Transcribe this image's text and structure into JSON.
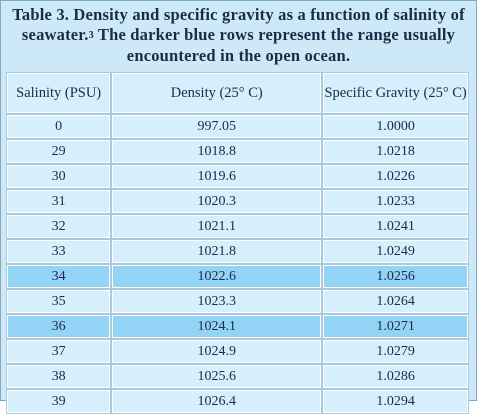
{
  "title": {
    "text": "Table 3.  Density and specific gravity as a function of salinity of seawater.",
    "footnote_ref": "3",
    "rest": " The darker blue rows represent the range usually encountered in the open ocean."
  },
  "table": {
    "header": [
      "Salinity (PSU)",
      "Density (25° C)",
      "Specific Gravity (25° C)"
    ],
    "rows": [
      {
        "cells": [
          "0",
          "997.05",
          "1.0000"
        ],
        "color": "#d6effc"
      },
      {
        "cells": [
          "29",
          "1018.8",
          "1.0218"
        ],
        "color": "#d6effc"
      },
      {
        "cells": [
          "30",
          "1019.6",
          "1.0226"
        ],
        "color": "#d6effc"
      },
      {
        "cells": [
          "31",
          "1020.3",
          "1.0233"
        ],
        "color": "#d6effc"
      },
      {
        "cells": [
          "32",
          "1021.1",
          "1.0241"
        ],
        "color": "#d6effc"
      },
      {
        "cells": [
          "33",
          "1021.8",
          "1.0249"
        ],
        "color": "#d6effc"
      },
      {
        "cells": [
          "34",
          "1022.6",
          "1.0256"
        ],
        "color": "#93d3f5"
      },
      {
        "cells": [
          "35",
          "1023.3",
          "1.0264"
        ],
        "color": "#d6effc"
      },
      {
        "cells": [
          "36",
          "1024.1",
          "1.0271"
        ],
        "color": "#93d3f5"
      },
      {
        "cells": [
          "37",
          "1024.9",
          "1.0279"
        ],
        "color": "#d6effc"
      },
      {
        "cells": [
          "38",
          "1025.6",
          "1.0286"
        ],
        "color": "#d6effc"
      },
      {
        "cells": [
          "39",
          "1026.4",
          "1.0294"
        ],
        "color": "#d6effc"
      }
    ]
  }
}
